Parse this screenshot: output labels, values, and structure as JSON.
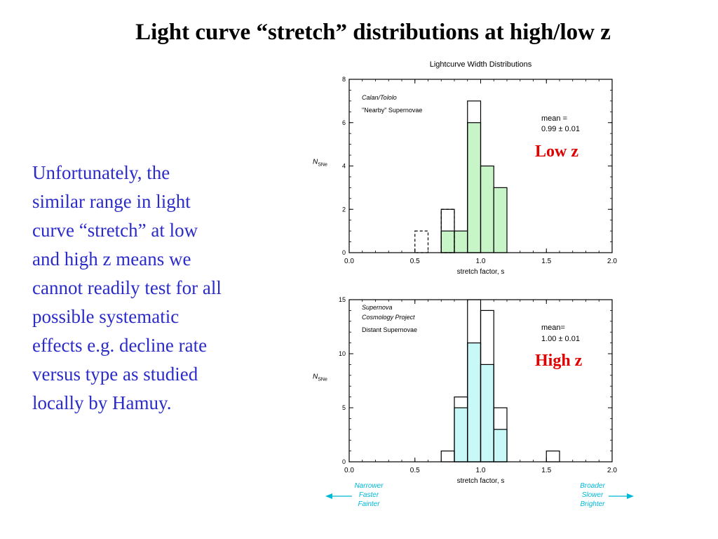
{
  "slide": {
    "title": "Light curve “stretch” distributions at high/low z",
    "body_lines": [
      "Unfortunately, the",
      "similar range in light",
      "curve “stretch” at low",
      "and high z means we",
      "cannot readily test for all",
      "possible systematic",
      "effects  e.g. decline rate",
      "versus type as studied",
      "locally by Hamuy."
    ]
  },
  "colors": {
    "low_fill": "#c8f5c8",
    "high_fill": "#c8f8f8",
    "label_red": "#e00000",
    "arrow_cyan": "#00b8d8",
    "text_blue": "#2b2bc8"
  },
  "chart_data": [
    {
      "type": "bar",
      "subtype": "histogram",
      "title": "Lightcurve Width Distributions",
      "xlabel": "stretch factor, s",
      "ylabel": "N_SNe",
      "xlim": [
        0.0,
        2.0
      ],
      "ylim": [
        0,
        8
      ],
      "xticks": [
        "0.0",
        "0.5",
        "1.0",
        "1.5",
        "2.0"
      ],
      "yticks": [
        "0",
        "2",
        "4",
        "6",
        "8"
      ],
      "bin_width": 0.1,
      "annotations": [
        "Calan/Tololo",
        "\"Nearby\" Supernovae"
      ],
      "mean_label": "mean =",
      "mean_value": "0.99 ± 0.01",
      "tag": "Low z",
      "series": [
        {
          "name": "filled",
          "style": "filled",
          "bins": [
            [
              0.7,
              0.8,
              1
            ],
            [
              0.8,
              0.9,
              1
            ],
            [
              0.9,
              1.0,
              6
            ],
            [
              1.0,
              1.1,
              4
            ],
            [
              1.1,
              1.2,
              3
            ]
          ]
        },
        {
          "name": "total",
          "style": "outline",
          "bins": [
            [
              0.7,
              0.8,
              2
            ],
            [
              0.9,
              1.0,
              7
            ]
          ]
        },
        {
          "name": "dashed",
          "style": "dashed",
          "bins": [
            [
              0.5,
              0.6,
              1
            ],
            [
              0.7,
              0.8,
              2
            ]
          ]
        }
      ]
    },
    {
      "type": "bar",
      "subtype": "histogram",
      "title": "",
      "xlabel": "stretch factor, s",
      "ylabel": "N_SNe",
      "xlim": [
        0.0,
        2.0
      ],
      "ylim": [
        0,
        15
      ],
      "xticks": [
        "0.0",
        "0.5",
        "1.0",
        "1.5",
        "2.0"
      ],
      "yticks": [
        "0",
        "5",
        "10",
        "15"
      ],
      "bin_width": 0.1,
      "annotations": [
        "Supernova",
        "Cosmology Project",
        "Distant Supernovae"
      ],
      "mean_label": "mean=",
      "mean_value": "1.00 ± 0.01",
      "tag": "High z",
      "series": [
        {
          "name": "filled",
          "style": "filled",
          "bins": [
            [
              0.8,
              0.9,
              5
            ],
            [
              0.9,
              1.0,
              11
            ],
            [
              1.0,
              1.1,
              9
            ],
            [
              1.1,
              1.2,
              3
            ]
          ]
        },
        {
          "name": "total",
          "style": "outline",
          "bins": [
            [
              0.7,
              0.8,
              1
            ],
            [
              0.8,
              0.9,
              6
            ],
            [
              0.9,
              1.0,
              15
            ],
            [
              1.0,
              1.1,
              14
            ],
            [
              1.1,
              1.2,
              5
            ],
            [
              1.5,
              1.6,
              1
            ]
          ]
        }
      ]
    }
  ],
  "arrows": {
    "left": [
      "Narrower",
      "Faster",
      "Fainter"
    ],
    "right": [
      "Broader",
      "Slower",
      "Brighter"
    ]
  }
}
